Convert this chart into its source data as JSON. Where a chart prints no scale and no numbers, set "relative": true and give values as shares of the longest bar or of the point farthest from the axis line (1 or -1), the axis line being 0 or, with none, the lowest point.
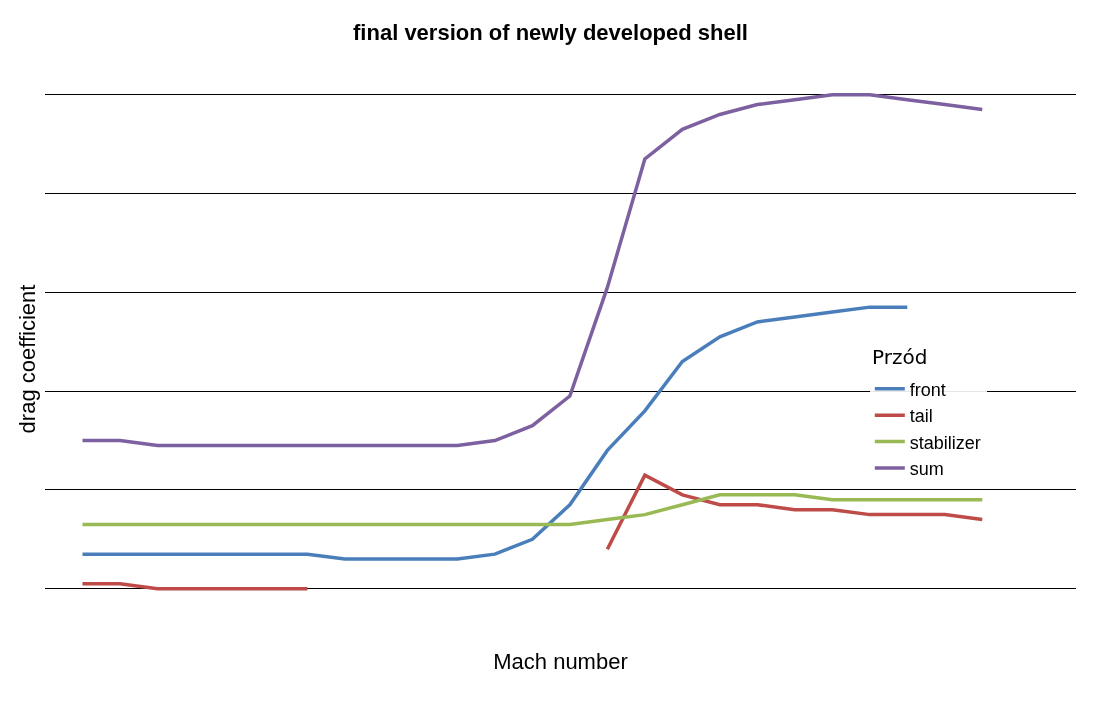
{
  "chart_data": {
    "type": "line",
    "title": "final version of newly developed shell",
    "xlabel": "Mach number",
    "ylabel": "drag coefficient",
    "relative": true,
    "grid": "y",
    "legend": "right",
    "marker": "none",
    "line_style": "solid",
    "annotations": [
      "Przód"
    ],
    "categories": [
      null,
      null,
      null,
      null,
      null,
      null,
      null,
      null,
      null,
      null,
      null,
      null,
      null,
      null,
      null,
      null,
      null,
      null,
      null,
      null,
      null,
      null,
      null,
      null,
      null
    ],
    "series": [
      {
        "name": "front",
        "color": "#4a7ebb",
        "values": [
          0.07,
          0.07,
          0.07,
          0.07,
          0.07,
          0.07,
          0.07,
          0.06,
          0.06,
          0.06,
          0.06,
          0.07,
          0.1,
          0.17,
          0.28,
          0.36,
          0.46,
          0.51,
          0.54,
          0.55,
          0.56,
          0.57,
          0.57,
          null,
          null
        ]
      },
      {
        "name": "tail",
        "color": "#be4b48",
        "values": [
          0.01,
          0.01,
          0.0,
          0.0,
          0.0,
          0.0,
          0.0,
          null,
          null,
          null,
          null,
          null,
          null,
          null,
          0.08,
          0.23,
          0.19,
          0.17,
          0.17,
          0.16,
          0.16,
          0.15,
          0.15,
          0.15,
          0.14
        ]
      },
      {
        "name": "stabilizer",
        "color": "#98b954",
        "values": [
          0.13,
          0.13,
          0.13,
          0.13,
          0.13,
          0.13,
          0.13,
          0.13,
          0.13,
          0.13,
          0.13,
          0.13,
          0.13,
          0.13,
          0.14,
          0.15,
          0.17,
          0.19,
          0.19,
          0.19,
          0.18,
          0.18,
          0.18,
          0.18,
          0.18
        ]
      },
      {
        "name": "sum",
        "color": "#7d60a0",
        "values": [
          0.3,
          0.3,
          0.29,
          0.29,
          0.29,
          0.29,
          0.29,
          0.29,
          0.29,
          0.29,
          0.29,
          0.3,
          0.33,
          0.39,
          0.61,
          0.87,
          0.93,
          0.96,
          0.98,
          0.99,
          1,
          1,
          0.99,
          0.98,
          0.97
        ]
      }
    ]
  }
}
